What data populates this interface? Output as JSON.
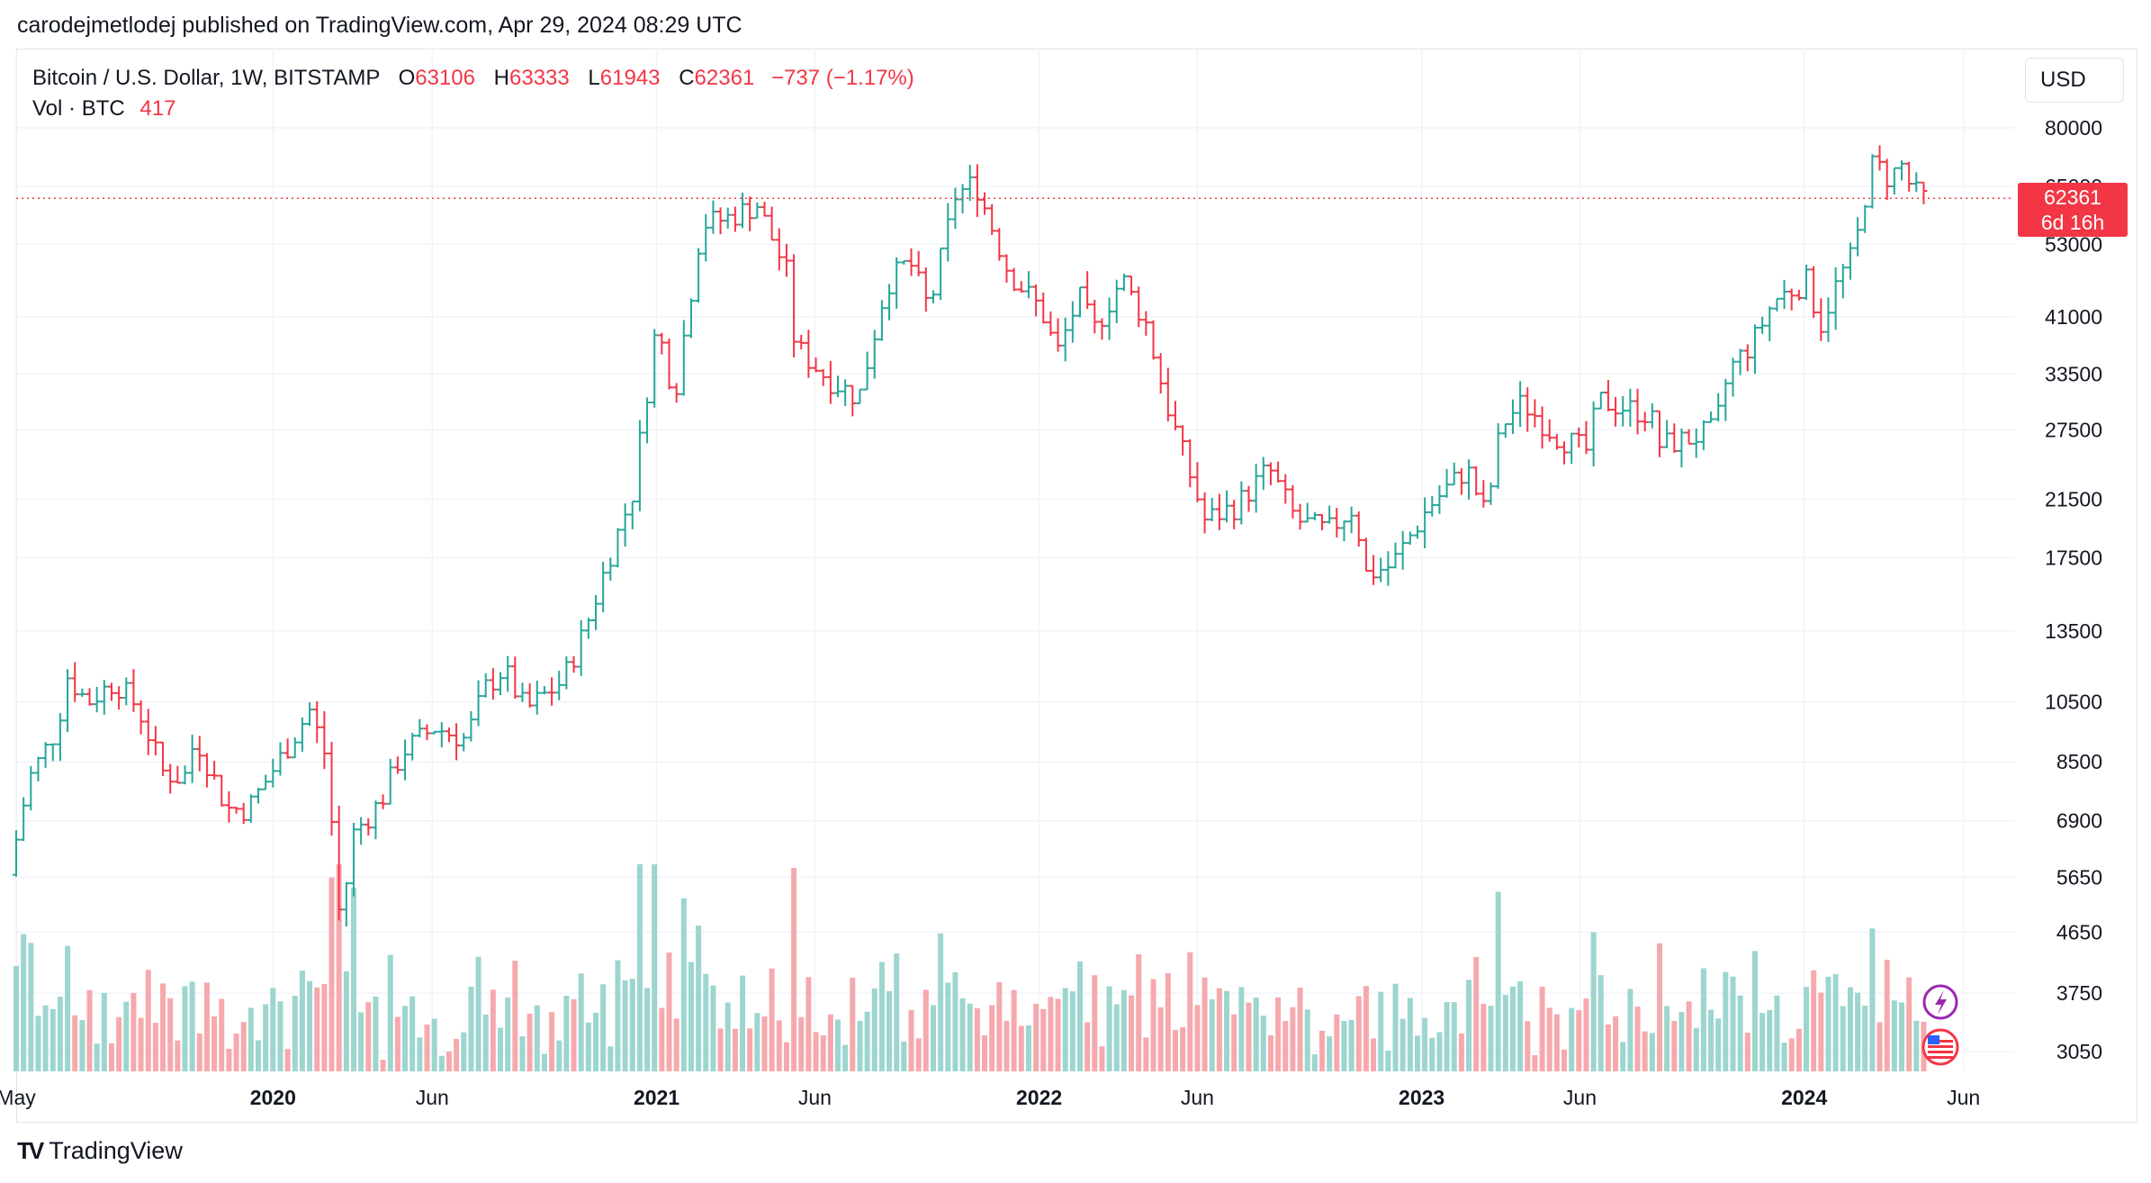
{
  "header": {
    "publisher_line": "carodejmetlodej published on TradingView.com, Apr 29, 2024 08:29 UTC"
  },
  "legend": {
    "symbol": "Bitcoin / U.S. Dollar, 1W, BITSTAMP",
    "o_label": "O",
    "o_value": "63106",
    "h_label": "H",
    "h_value": "63333",
    "l_label": "L",
    "l_value": "61943",
    "c_label": "C",
    "c_value": "62361",
    "change": "−737 (−1.17%)",
    "vol_label": "Vol · BTC",
    "vol_value": "417"
  },
  "currency_button": "USD",
  "last_price": {
    "value": "62361",
    "countdown": "6d 16h"
  },
  "footer": {
    "brand": "TradingView",
    "logo_mark": "TV"
  },
  "colors": {
    "up": "#26a69a",
    "down": "#f23645",
    "vol_up": "#9dd5cf",
    "vol_down": "#f6a9ad",
    "grid": "#f0f3fa"
  },
  "icons": {
    "events": "lightning-icon",
    "country": "us-flag-icon"
  },
  "chart_data": {
    "type": "candlestick",
    "scale": "log",
    "y_ticks": [
      "80000",
      "65000",
      "53000",
      "41000",
      "33500",
      "27500",
      "21500",
      "17500",
      "13500",
      "10500",
      "8500",
      "6900",
      "5650",
      "4650",
      "3750",
      "3050"
    ],
    "x_ticks": [
      {
        "label": "May",
        "bold": false,
        "date": "2019-05"
      },
      {
        "label": "2020",
        "bold": true,
        "date": "2020-01"
      },
      {
        "label": "Jun",
        "bold": false,
        "date": "2020-06"
      },
      {
        "label": "2021",
        "bold": true,
        "date": "2021-01"
      },
      {
        "label": "Jun",
        "bold": false,
        "date": "2021-06"
      },
      {
        "label": "2022",
        "bold": true,
        "date": "2022-01"
      },
      {
        "label": "Jun",
        "bold": false,
        "date": "2022-06"
      },
      {
        "label": "2023",
        "bold": true,
        "date": "2023-01"
      },
      {
        "label": "Jun",
        "bold": false,
        "date": "2023-06"
      },
      {
        "label": "2024",
        "bold": true,
        "date": "2024-01"
      },
      {
        "label": "Jun",
        "bold": false,
        "date": "2024-06"
      }
    ],
    "date_range": [
      "2019-05",
      "2024-06"
    ],
    "closes_path": [
      [
        "2019-05-01",
        5700
      ],
      [
        "2019-05-20",
        8000
      ],
      [
        "2019-06-15",
        9500
      ],
      [
        "2019-06-26",
        11500
      ],
      [
        "2019-07-15",
        10500
      ],
      [
        "2019-08-10",
        11300
      ],
      [
        "2019-09-01",
        10300
      ],
      [
        "2019-09-25",
        8200
      ],
      [
        "2019-10-15",
        8000
      ],
      [
        "2019-10-26",
        9300
      ],
      [
        "2019-11-25",
        7200
      ],
      [
        "2019-12-15",
        7200
      ],
      [
        "2020-01-15",
        8600
      ],
      [
        "2020-02-12",
        10200
      ],
      [
        "2020-02-28",
        8600
      ],
      [
        "2020-03-12",
        4800
      ],
      [
        "2020-03-25",
        6600
      ],
      [
        "2020-04-20",
        7400
      ],
      [
        "2020-05-10",
        8800
      ],
      [
        "2020-06-10",
        9600
      ],
      [
        "2020-07-10",
        9200
      ],
      [
        "2020-07-28",
        11000
      ],
      [
        "2020-08-15",
        11800
      ],
      [
        "2020-09-05",
        10200
      ],
      [
        "2020-10-10",
        11300
      ],
      [
        "2020-11-01",
        13600
      ],
      [
        "2020-11-25",
        17800
      ],
      [
        "2020-12-16",
        22000
      ],
      [
        "2021-01-08",
        40000
      ],
      [
        "2021-01-25",
        31000
      ],
      [
        "2021-02-20",
        57000
      ],
      [
        "2021-03-15",
        58000
      ],
      [
        "2021-04-14",
        61000
      ],
      [
        "2021-05-12",
        48000
      ],
      [
        "2021-05-20",
        37000
      ],
      [
        "2021-06-20",
        33000
      ],
      [
        "2021-07-20",
        30800
      ],
      [
        "2021-08-15",
        46000
      ],
      [
        "2021-09-06",
        50000
      ],
      [
        "2021-09-25",
        42000
      ],
      [
        "2021-10-20",
        63000
      ],
      [
        "2021-11-08",
        66000
      ],
      [
        "2021-12-10",
        48000
      ],
      [
        "2022-01-10",
        42000
      ],
      [
        "2022-01-25",
        36000
      ],
      [
        "2022-02-15",
        44000
      ],
      [
        "2022-03-01",
        39000
      ],
      [
        "2022-03-28",
        47000
      ],
      [
        "2022-04-20",
        40000
      ],
      [
        "2022-05-10",
        30000
      ],
      [
        "2022-06-15",
        20000
      ],
      [
        "2022-07-15",
        21000
      ],
      [
        "2022-08-15",
        24000
      ],
      [
        "2022-09-10",
        20000
      ],
      [
        "2022-10-10",
        19200
      ],
      [
        "2022-11-05",
        21000
      ],
      [
        "2022-11-15",
        16500
      ],
      [
        "2022-12-10",
        17000
      ],
      [
        "2023-01-15",
        21000
      ],
      [
        "2023-02-20",
        24000
      ],
      [
        "2023-03-10",
        20300
      ],
      [
        "2023-03-25",
        28000
      ],
      [
        "2023-04-14",
        30300
      ],
      [
        "2023-05-15",
        27000
      ],
      [
        "2023-06-15",
        25500
      ],
      [
        "2023-06-25",
        30500
      ],
      [
        "2023-07-20",
        29800
      ],
      [
        "2023-08-15",
        29000
      ],
      [
        "2023-08-20",
        26000
      ],
      [
        "2023-09-15",
        26500
      ],
      [
        "2023-10-15",
        27500
      ],
      [
        "2023-10-28",
        34000
      ],
      [
        "2023-11-20",
        37500
      ],
      [
        "2023-12-10",
        43500
      ],
      [
        "2024-01-10",
        46500
      ],
      [
        "2024-01-24",
        40000
      ],
      [
        "2024-02-10",
        47000
      ],
      [
        "2024-02-25",
        51500
      ],
      [
        "2024-03-05",
        62000
      ],
      [
        "2024-03-14",
        71000
      ],
      [
        "2024-03-28",
        67000
      ],
      [
        "2024-04-10",
        70000
      ],
      [
        "2024-04-20",
        64000
      ],
      [
        "2024-04-29",
        62361
      ]
    ],
    "volume_range": [
      0,
      1
    ]
  }
}
